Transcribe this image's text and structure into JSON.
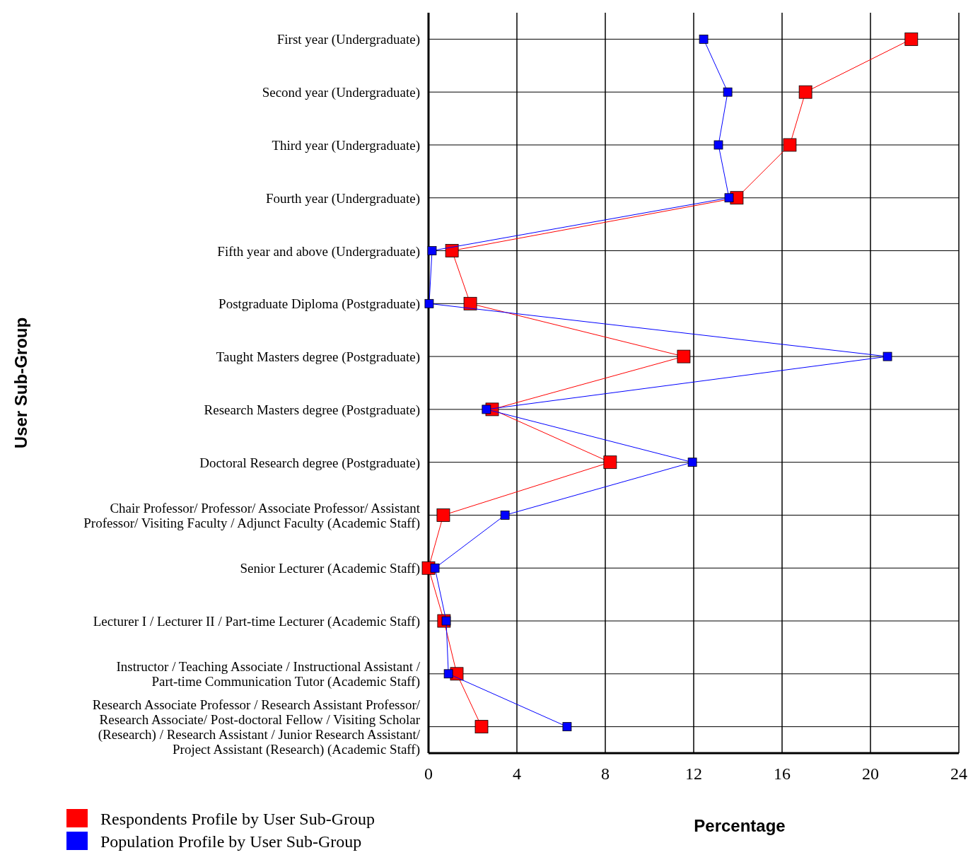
{
  "chart_data": {
    "type": "line",
    "orientation": "horizontal",
    "xlabel": "Percentage",
    "ylabel": "User Sub-Group",
    "categories": [
      "First year (Undergraduate)",
      "Second year (Undergraduate)",
      "Third year (Undergraduate)",
      "Fourth year (Undergraduate)",
      "Fifth year and above (Undergraduate)",
      "Postgraduate Diploma (Postgraduate)",
      "Taught Masters degree (Postgraduate)",
      "Research Masters degree (Postgraduate)",
      "Doctoral Research degree (Postgraduate)",
      "Chair Professor/ Professor/ Associate Professor/ Assistant Professor/ Visiting Faculty / Adjunct Faculty (Academic Staff)",
      "Senior Lecturer (Academic Staff)",
      "Lecturer I / Lecturer II / Part-time Lecturer (Academic Staff)",
      "Instructor / Teaching Associate / Instructional Assistant / Part-time Communication Tutor (Academic Staff)",
      "Research Associate Professor / Research Assistant Professor/ Research Associate/ Post-doctoral Fellow / Visiting Scholar (Research) / Research Assistant / Junior Research Assistant/ Project Assistant (Research) (Academic Staff)"
    ],
    "series": [
      {
        "name": "Respondents Profile by User Sub-Group",
        "color": "#ff0000",
        "values": [
          21.85,
          17.06,
          16.35,
          13.95,
          1.06,
          1.89,
          11.55,
          2.88,
          8.22,
          0.67,
          0,
          0.7,
          1.28,
          2.4
        ]
      },
      {
        "name": "Population Profile by User Sub-Group",
        "color": "#0000ff",
        "values": [
          12.45,
          13.54,
          13.12,
          13.6,
          0.16,
          0.03,
          20.77,
          2.62,
          11.94,
          3.46,
          0.29,
          0.8,
          0.9,
          6.27
        ]
      }
    ],
    "xlim": [
      0,
      24
    ],
    "xticks": [
      0,
      4,
      8,
      12,
      16,
      20,
      24
    ],
    "grid": true,
    "legend": "bottom left",
    "marker": "square",
    "line_style": "solid"
  }
}
